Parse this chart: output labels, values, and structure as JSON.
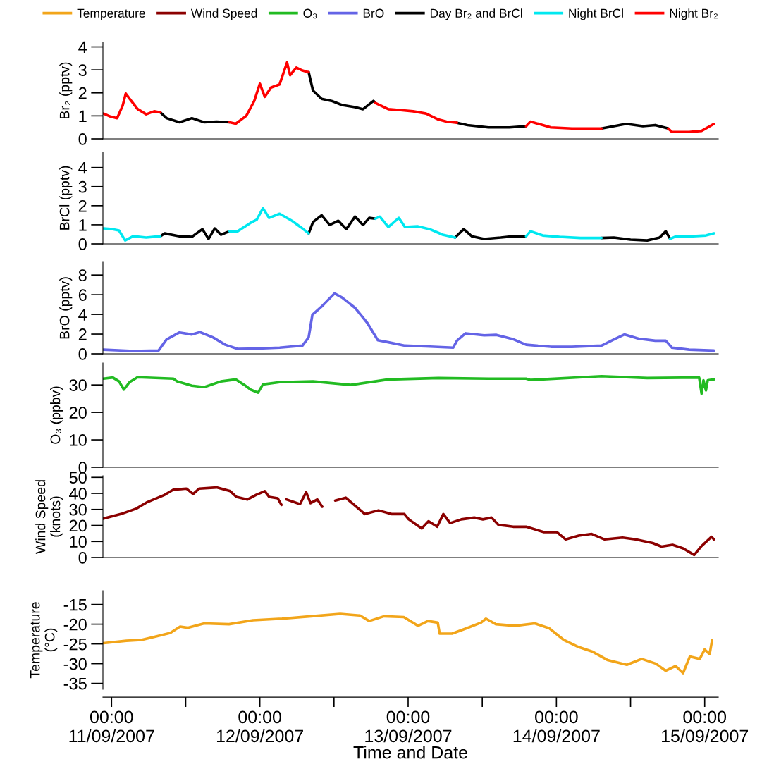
{
  "chart_data": [
    {
      "type": "line",
      "ylabel": "Br₂ (pptv)",
      "xlim": [
        "2007-09-10T22:36",
        "2007-09-15T02:12"
      ],
      "ylim": [
        0,
        4.2
      ],
      "yticks": [
        0,
        1,
        2,
        3,
        4
      ],
      "tick_labels": "y",
      "legend": "top",
      "series": [
        {
          "name": "Day Br₂ and BrCl",
          "color": "#000000",
          "x": [
            "2007-09-11T07:54",
            "2007-09-11T08:54",
            "2007-09-11T11:00",
            "2007-09-11T13:00",
            "2007-09-11T15:00",
            "2007-09-11T17:00",
            "2007-09-11T19:06",
            "2007-09-12T01:00",
            "2007-09-12T07:54",
            "2007-09-12T08:36",
            "2007-09-12T10:00",
            "2007-09-12T11:36",
            "2007-09-12T13:18",
            "2007-09-12T15:24",
            "2007-09-12T16:42",
            "2007-09-12T18:24",
            "2007-09-12T18:42",
            "2007-09-13T02:00",
            "2007-09-13T07:54",
            "2007-09-13T09:36",
            "2007-09-13T13:00",
            "2007-09-13T16:24",
            "2007-09-13T19:06",
            "2007-09-14T01:00",
            "2007-09-14T07:18",
            "2007-09-14T09:18",
            "2007-09-14T11:18",
            "2007-09-14T14:00",
            "2007-09-14T16:00",
            "2007-09-14T18:06"
          ],
          "values": [
            1.15,
            0.9,
            0.72,
            0.9,
            0.72,
            0.75,
            0.72,
            null,
            2.9,
            2.1,
            1.74,
            1.65,
            1.47,
            1.38,
            1.29,
            1.65,
            1.56,
            null,
            0.7,
            0.6,
            0.5,
            0.5,
            0.55,
            null,
            0.45,
            0.55,
            0.65,
            0.55,
            0.6,
            0.45
          ]
        },
        {
          "name": "Night Br₂",
          "color": "#ff0000",
          "x": [
            "2007-09-10T22:42",
            "2007-09-10T23:48",
            "2007-09-11T00:54",
            "2007-09-11T01:48",
            "2007-09-11T02:18",
            "2007-09-11T02:54",
            "2007-09-11T04:12",
            "2007-09-11T05:36",
            "2007-09-11T06:54",
            "2007-09-11T07:54",
            "2007-09-11T13:00",
            "2007-09-11T19:06",
            "2007-09-11T20:06",
            "2007-09-11T21:48",
            "2007-09-11T23:06",
            "2007-09-12T00:00",
            "2007-09-12T00:48",
            "2007-09-12T01:48",
            "2007-09-12T03:12",
            "2007-09-12T04:24",
            "2007-09-12T04:54",
            "2007-09-12T05:54",
            "2007-09-12T06:54",
            "2007-09-12T07:54",
            "2007-09-12T13:00",
            "2007-09-12T18:42",
            "2007-09-12T20:48",
            "2007-09-12T22:48",
            "2007-09-13T00:48",
            "2007-09-13T02:54",
            "2007-09-13T04:54",
            "2007-09-13T06:12",
            "2007-09-13T07:54",
            "2007-09-13T13:00",
            "2007-09-13T19:06",
            "2007-09-13T19:48",
            "2007-09-13T23:06",
            "2007-09-14T02:30",
            "2007-09-14T05:54",
            "2007-09-14T07:18",
            "2007-09-14T13:00",
            "2007-09-14T18:06",
            "2007-09-14T18:42",
            "2007-09-14T21:30",
            "2007-09-14T23:30",
            "2007-09-15T01:30"
          ],
          "values": [
            1.1,
            0.97,
            0.9,
            1.45,
            1.97,
            1.75,
            1.3,
            1.07,
            1.2,
            1.15,
            null,
            0.72,
            0.66,
            1.0,
            1.65,
            2.4,
            1.83,
            2.23,
            2.37,
            3.32,
            2.77,
            3.1,
            2.97,
            2.9,
            null,
            1.56,
            1.29,
            1.25,
            1.2,
            1.1,
            0.84,
            0.75,
            0.7,
            null,
            0.55,
            0.75,
            0.5,
            0.45,
            0.45,
            0.45,
            null,
            0.45,
            0.3,
            0.3,
            0.35,
            0.65
          ]
        }
      ]
    },
    {
      "type": "line",
      "ylabel": "BrCl (pptv)",
      "xlim": [
        "2007-09-10T22:36",
        "2007-09-15T02:12"
      ],
      "ylim": [
        0,
        4.8
      ],
      "yticks": [
        0,
        1,
        2,
        3,
        4
      ],
      "tick_labels": "y",
      "series": [
        {
          "name": "Day Br₂ and BrCl",
          "color": "#000000",
          "x": [
            "2007-09-11T07:54",
            "2007-09-11T08:36",
            "2007-09-11T11:00",
            "2007-09-11T13:00",
            "2007-09-11T14:42",
            "2007-09-11T15:42",
            "2007-09-11T16:42",
            "2007-09-11T17:42",
            "2007-09-11T19:06",
            "2007-09-12T01:00",
            "2007-09-12T07:54",
            "2007-09-12T08:36",
            "2007-09-12T10:00",
            "2007-09-12T11:18",
            "2007-09-12T12:42",
            "2007-09-12T14:00",
            "2007-09-12T15:24",
            "2007-09-12T16:42",
            "2007-09-12T17:42",
            "2007-09-12T18:42",
            "2007-09-13T02:00",
            "2007-09-13T07:36",
            "2007-09-13T09:00",
            "2007-09-13T10:18",
            "2007-09-13T12:18",
            "2007-09-13T15:00",
            "2007-09-13T17:06",
            "2007-09-13T19:06",
            "2007-09-14T01:00",
            "2007-09-14T07:18",
            "2007-09-14T09:18",
            "2007-09-14T12:00",
            "2007-09-14T14:42",
            "2007-09-14T16:42",
            "2007-09-14T17:42",
            "2007-09-14T18:24"
          ],
          "values": [
            0.4,
            0.55,
            0.4,
            0.37,
            0.77,
            0.26,
            0.81,
            0.48,
            0.66,
            null,
            0.55,
            1.14,
            1.5,
            0.99,
            1.21,
            0.77,
            1.43,
            0.99,
            1.36,
            1.32,
            null,
            0.33,
            0.77,
            0.4,
            0.26,
            0.33,
            0.4,
            0.4,
            null,
            0.31,
            0.33,
            0.22,
            0.18,
            0.33,
            0.66,
            0.26
          ]
        },
        {
          "name": "Night BrCl",
          "color": "#00e8f0",
          "x": [
            "2007-09-10T22:42",
            "2007-09-11T00:12",
            "2007-09-11T01:12",
            "2007-09-11T02:12",
            "2007-09-11T03:30",
            "2007-09-11T05:36",
            "2007-09-11T07:54",
            "2007-09-11T13:00",
            "2007-09-11T19:06",
            "2007-09-11T20:24",
            "2007-09-11T22:30",
            "2007-09-11T23:30",
            "2007-09-12T00:30",
            "2007-09-12T01:30",
            "2007-09-12T03:12",
            "2007-09-12T05:12",
            "2007-09-12T06:36",
            "2007-09-12T07:54",
            "2007-09-12T13:00",
            "2007-09-12T18:42",
            "2007-09-12T19:24",
            "2007-09-12T20:48",
            "2007-09-12T22:30",
            "2007-09-12T23:30",
            "2007-09-13T01:30",
            "2007-09-13T03:30",
            "2007-09-13T05:36",
            "2007-09-13T07:36",
            "2007-09-13T13:00",
            "2007-09-13T19:06",
            "2007-09-13T19:48",
            "2007-09-13T21:48",
            "2007-09-14T00:30",
            "2007-09-14T03:54",
            "2007-09-14T07:18",
            "2007-09-14T13:00",
            "2007-09-14T18:24",
            "2007-09-14T19:24",
            "2007-09-14T22:06",
            "2007-09-15T00:12",
            "2007-09-15T01:30"
          ],
          "values": [
            0.81,
            0.77,
            0.7,
            0.18,
            0.4,
            0.33,
            0.4,
            null,
            0.66,
            0.66,
            1.1,
            1.27,
            1.87,
            1.36,
            1.58,
            1.21,
            0.88,
            0.55,
            null,
            1.32,
            1.43,
            0.88,
            1.36,
            0.88,
            0.92,
            0.77,
            0.48,
            0.33,
            null,
            0.4,
            0.66,
            0.44,
            0.37,
            0.31,
            0.31,
            null,
            0.26,
            0.4,
            0.4,
            0.44,
            0.55
          ]
        }
      ]
    },
    {
      "type": "line",
      "ylabel": "BrO (pptv)",
      "xlim": [
        "2007-09-10T22:36",
        "2007-09-15T02:12"
      ],
      "ylim": [
        0,
        9.3
      ],
      "yticks": [
        0,
        2,
        4,
        6,
        8
      ],
      "tick_labels": "y",
      "series": [
        {
          "name": "BrO",
          "color": "#6464e6",
          "x": [
            "2007-09-10T22:42",
            "2007-09-11T03:30",
            "2007-09-11T07:36",
            "2007-09-11T08:54",
            "2007-09-11T11:00",
            "2007-09-11T13:00",
            "2007-09-11T14:18",
            "2007-09-11T16:24",
            "2007-09-11T18:24",
            "2007-09-11T20:24",
            "2007-09-11T23:48",
            "2007-09-12T03:12",
            "2007-09-12T06:54",
            "2007-09-12T07:54",
            "2007-09-12T08:30",
            "2007-09-12T10:00",
            "2007-09-12T11:18",
            "2007-09-12T12:06",
            "2007-09-12T13:18",
            "2007-09-12T15:24",
            "2007-09-12T17:24",
            "2007-09-12T19:06",
            "2007-09-12T20:48",
            "2007-09-12T23:30",
            "2007-09-13T02:54",
            "2007-09-13T07:18",
            "2007-09-13T07:54",
            "2007-09-13T09:18",
            "2007-09-13T12:18",
            "2007-09-13T14:18",
            "2007-09-13T17:06",
            "2007-09-13T19:06",
            "2007-09-13T23:06",
            "2007-09-14T02:30",
            "2007-09-14T07:18",
            "2007-09-14T09:18",
            "2007-09-14T11:00",
            "2007-09-14T13:18",
            "2007-09-14T16:00",
            "2007-09-14T17:42",
            "2007-09-14T18:42",
            "2007-09-14T21:30",
            "2007-09-15T01:30"
          ],
          "values": [
            0.42,
            0.29,
            0.33,
            1.46,
            2.17,
            1.96,
            2.2,
            1.67,
            0.92,
            0.5,
            0.54,
            0.63,
            0.83,
            1.67,
            3.96,
            4.8,
            5.63,
            6.13,
            5.71,
            4.67,
            3.13,
            1.38,
            1.17,
            0.83,
            0.75,
            0.63,
            1.33,
            2.08,
            1.88,
            1.92,
            1.46,
            0.92,
            0.71,
            0.71,
            0.83,
            1.46,
            1.96,
            1.54,
            1.33,
            1.33,
            0.63,
            0.42,
            0.33
          ]
        }
      ]
    },
    {
      "type": "line",
      "ylabel": "O₃ (ppbv)",
      "xlim": [
        "2007-09-10T22:36",
        "2007-09-15T02:12"
      ],
      "ylim": [
        0,
        38
      ],
      "yticks": [
        0,
        10,
        20,
        30
      ],
      "tick_labels": "y",
      "series": [
        {
          "name": "O₃",
          "color": "#22bb22",
          "x": [
            "2007-09-10T22:42",
            "2007-09-11T00:12",
            "2007-09-11T01:12",
            "2007-09-11T02:00",
            "2007-09-11T02:54",
            "2007-09-11T04:12",
            "2007-09-11T10:00",
            "2007-09-11T10:36",
            "2007-09-11T13:00",
            "2007-09-11T15:00",
            "2007-09-11T17:42",
            "2007-09-11T20:06",
            "2007-09-11T21:30",
            "2007-09-11T22:30",
            "2007-09-11T23:42",
            "2007-09-12T00:30",
            "2007-09-12T03:12",
            "2007-09-12T08:36",
            "2007-09-12T14:42",
            "2007-09-12T20:48",
            "2007-09-13T04:54",
            "2007-09-13T13:00",
            "2007-09-13T19:06",
            "2007-09-13T19:48",
            "2007-09-14T07:18",
            "2007-09-14T14:42",
            "2007-09-14T23:06",
            "2007-09-14T23:30",
            "2007-09-14T23:48",
            "2007-09-15T00:12",
            "2007-09-15T00:30",
            "2007-09-15T01:30"
          ],
          "values": [
            32.3,
            32.7,
            31.3,
            28.3,
            31,
            32.8,
            32.3,
            31.3,
            29.7,
            29.2,
            31.3,
            32,
            30,
            28.3,
            27.2,
            30.2,
            31,
            31.3,
            30,
            32,
            32.5,
            32.3,
            32.3,
            31.8,
            33.2,
            32.5,
            32.7,
            26.8,
            31.7,
            28,
            31.7,
            32
          ]
        }
      ]
    },
    {
      "type": "line",
      "ylabel": "Wind Speed\n(knots)",
      "xlim": [
        "2007-09-10T22:36",
        "2007-09-15T02:12"
      ],
      "ylim": [
        0,
        51
      ],
      "yticks": [
        0,
        10,
        20,
        30,
        40,
        50
      ],
      "tick_labels": "y",
      "series": [
        {
          "name": "Wind Speed",
          "color": "#8b0000",
          "x": [
            "2007-09-10T22:36",
            "2007-09-11T01:30",
            "2007-09-11T04:00",
            "2007-09-11T05:48",
            "2007-09-11T08:36",
            "2007-09-11T10:00",
            "2007-09-11T12:06",
            "2007-09-11T13:12",
            "2007-09-11T14:12",
            "2007-09-11T17:00",
            "2007-09-11T19:12",
            "2007-09-11T20:12",
            "2007-09-11T22:00",
            "2007-09-11T23:24",
            "2007-09-12T00:48",
            "2007-09-12T01:30",
            "2007-09-12T02:54",
            "2007-09-12T03:30",
            "2007-09-12T03:54",
            "2007-09-12T04:18",
            "2007-09-12T06:30",
            "2007-09-12T07:30",
            "2007-09-12T08:12",
            "2007-09-12T09:18",
            "2007-09-12T10:06",
            "2007-09-12T11:00",
            "2007-09-12T12:12",
            "2007-09-12T13:54",
            "2007-09-12T15:36",
            "2007-09-12T17:00",
            "2007-09-12T19:12",
            "2007-09-12T21:18",
            "2007-09-12T23:24",
            "2007-09-13T00:06",
            "2007-09-13T02:12",
            "2007-09-13T03:18",
            "2007-09-13T04:42",
            "2007-09-13T05:42",
            "2007-09-13T06:48",
            "2007-09-13T08:36",
            "2007-09-13T10:42",
            "2007-09-13T12:06",
            "2007-09-13T13:30",
            "2007-09-13T14:36",
            "2007-09-13T17:00",
            "2007-09-13T19:06",
            "2007-09-13T22:00",
            "2007-09-14T00:06",
            "2007-09-14T01:30",
            "2007-09-14T03:36",
            "2007-09-14T05:42",
            "2007-09-14T07:48",
            "2007-09-14T10:42",
            "2007-09-14T12:48",
            "2007-09-14T15:36",
            "2007-09-14T17:00",
            "2007-09-14T18:48",
            "2007-09-14T20:30",
            "2007-09-14T22:18",
            "2007-09-14T23:24",
            "2007-09-15T01:06",
            "2007-09-15T01:30"
          ],
          "values": [
            24.2,
            27.1,
            30.5,
            34.6,
            39.1,
            42.3,
            43,
            39.6,
            43,
            43.7,
            41.4,
            37.8,
            36.2,
            39.1,
            41.4,
            37.8,
            36.9,
            32.8,
            null,
            36.2,
            33.3,
            40.7,
            33.9,
            36.2,
            31.7,
            null,
            35.5,
            37.3,
            31.7,
            27.1,
            29.4,
            27.1,
            27.1,
            23.8,
            18.1,
            22.6,
            19.2,
            27.1,
            21.5,
            23.8,
            24.9,
            23.8,
            24.9,
            20.4,
            19.2,
            19.2,
            15.8,
            15.8,
            11.3,
            13.6,
            14.7,
            11.3,
            12.4,
            11.3,
            9,
            6.8,
            7.9,
            5.7,
            1.6,
            6.8,
            12.9,
            11.3
          ]
        }
      ]
    },
    {
      "type": "line",
      "ylabel": "Temperature\n(°C)",
      "xlabel": "Time and Date",
      "xlim": [
        "2007-09-10T22:36",
        "2007-09-15T02:12"
      ],
      "ylim": [
        -36.5,
        -11.5
      ],
      "yticks": [
        -35,
        -30,
        -25,
        -20,
        -15
      ],
      "xticks": [
        {
          "value": "2007-09-11T00:00",
          "label": "00:00\n11/09/2007"
        },
        {
          "value": "2007-09-11T12:00",
          "label": null
        },
        {
          "value": "2007-09-12T00:00",
          "label": "00:00\n12/09/2007"
        },
        {
          "value": "2007-09-12T12:00",
          "label": null
        },
        {
          "value": "2007-09-13T00:00",
          "label": "00:00\n13/09/2007"
        },
        {
          "value": "2007-09-13T12:00",
          "label": null
        },
        {
          "value": "2007-09-14T00:00",
          "label": "00:00\n14/09/2007"
        },
        {
          "value": "2007-09-14T12:00",
          "label": null
        },
        {
          "value": "2007-09-15T00:00",
          "label": "00:00\n15/09/2007"
        }
      ],
      "series": [
        {
          "name": "Temperature",
          "color": "#f2a51a",
          "x": [
            "2007-09-10T22:42",
            "2007-09-11T02:24",
            "2007-09-11T04:48",
            "2007-09-11T07:12",
            "2007-09-11T09:30",
            "2007-09-11T11:06",
            "2007-09-11T12:18",
            "2007-09-11T15:00",
            "2007-09-11T19:00",
            "2007-09-11T22:54",
            "2007-09-12T03:36",
            "2007-09-12T08:18",
            "2007-09-12T13:00",
            "2007-09-12T16:12",
            "2007-09-12T17:42",
            "2007-09-12T20:06",
            "2007-09-12T23:18",
            "2007-09-13T01:36",
            "2007-09-13T03:12",
            "2007-09-13T04:48",
            "2007-09-13T05:06",
            "2007-09-13T07:06",
            "2007-09-13T09:30",
            "2007-09-13T11:48",
            "2007-09-13T12:36",
            "2007-09-13T14:12",
            "2007-09-13T17:18",
            "2007-09-13T20:30",
            "2007-09-13T22:48",
            "2007-09-14T01:12",
            "2007-09-14T03:36",
            "2007-09-14T05:54",
            "2007-09-14T08:18",
            "2007-09-14T11:24",
            "2007-09-14T13:48",
            "2007-09-14T16:06",
            "2007-09-14T17:42",
            "2007-09-14T19:18",
            "2007-09-14T20:30",
            "2007-09-14T21:36",
            "2007-09-14T23:12",
            "2007-09-15T00:00",
            "2007-09-15T00:48",
            "2007-09-15T01:12"
          ],
          "values": [
            -24.8,
            -24.2,
            -24,
            -23.1,
            -22.2,
            -20.6,
            -20.9,
            -19.8,
            -20,
            -19,
            -18.6,
            -18,
            -17.4,
            -17.8,
            -19.2,
            -18,
            -18.2,
            -20.4,
            -19.2,
            -19.6,
            -22.4,
            -22.4,
            -21,
            -19.6,
            -18.6,
            -20,
            -20.4,
            -19.8,
            -21,
            -24,
            -25.8,
            -27,
            -29.1,
            -30.3,
            -28.8,
            -30,
            -31.8,
            -30.6,
            -32.4,
            -28.2,
            -28.8,
            -26.4,
            -27.6,
            -24
          ]
        }
      ]
    }
  ]
}
